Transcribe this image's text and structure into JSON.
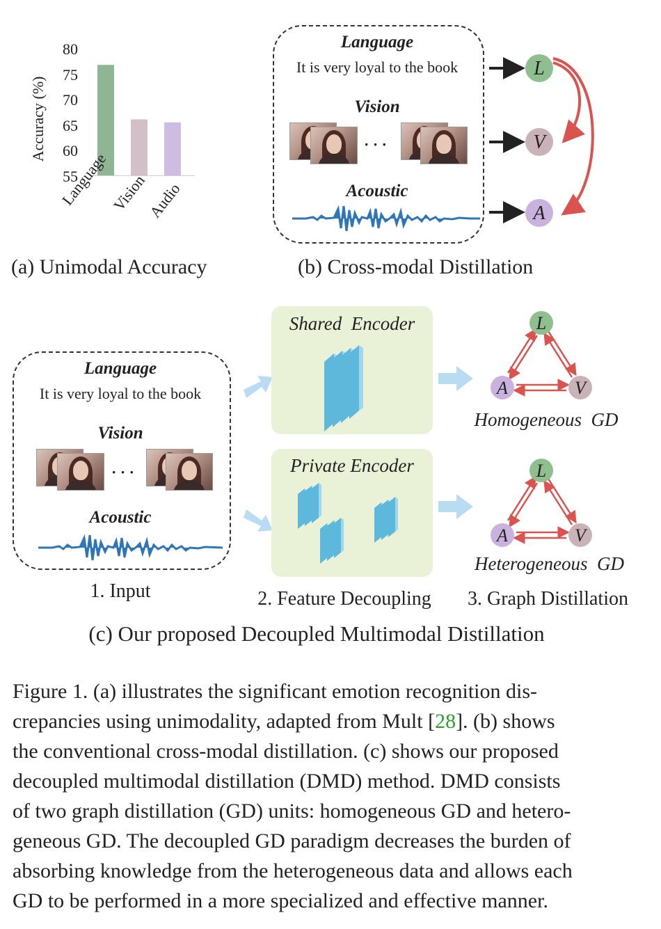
{
  "panel_a": {
    "caption": "(a) Unimodal Accuracy",
    "ylabel": "Accuracy (%)",
    "ticks": [
      "80",
      "75",
      "70",
      "65",
      "60",
      "55"
    ]
  },
  "chart_data": {
    "type": "bar",
    "categories": [
      "Language",
      "Vision",
      "Audio"
    ],
    "values": [
      77.3,
      66.3,
      65.7
    ],
    "ylabel": "Accuracy (%)",
    "ylim": [
      55,
      80
    ],
    "yticks": [
      55,
      60,
      65,
      70,
      75,
      80
    ],
    "colors": [
      "#8fb595",
      "#d2bfc7",
      "#cdbde2"
    ],
    "grid": false
  },
  "panel_b": {
    "caption": "(b) Cross-modal Distillation",
    "language_title": "Language",
    "sentence": "It is very loyal to the book",
    "vision_title": "Vision",
    "ellipsis": "· · ·",
    "acoustic_title": "Acoustic",
    "nodes": [
      "L",
      "V",
      "A"
    ]
  },
  "panel_c": {
    "caption": "(c) Our proposed Decoupled Multimodal Distillation",
    "language_title": "Language",
    "sentence": "It is very loyal to the book",
    "vision_title": "Vision",
    "ellipsis": "· · ·",
    "acoustic_title": "Acoustic",
    "step1": "1. Input",
    "step2": "2. Feature Decoupling",
    "step3": "3. Graph Distillation",
    "shared_encoder": "Shared  Encoder",
    "private_encoder": "Private Encoder",
    "homogeneous_gd": "Homogeneous  GD",
    "heterogeneous_gd": "Heterogeneous  GD",
    "nodes": [
      "L",
      "A",
      "V"
    ]
  },
  "figure_caption": {
    "lines": [
      [
        "Figure 1.  (a) illustrates the significant emotion recognition dis-"
      ],
      [
        "crepancies using unimodality, adapted from Mult [",
        "28",
        "].  (b) shows"
      ],
      [
        "the conventional cross-modal distillation. (c) shows our proposed"
      ],
      [
        "decoupled multimodal distillation (DMD) method. DMD consists"
      ],
      [
        "of two graph distillation (GD) units: homogeneous GD and hetero-"
      ],
      [
        "geneous GD. The decoupled GD paradigm decreases the burden of"
      ],
      [
        "absorbing knowledge from the heterogeneous data and allows each"
      ],
      [
        "GD to be performed in a more specialized and effective manner."
      ]
    ],
    "line1": "Figure 1.  (a) illustrates the significant emotion recognition dis-",
    "line2a": "crepancies using unimodality, adapted from Mult [",
    "line2_ref": "28",
    "line2b": "].  (b) shows",
    "line3": "the conventional cross-modal distillation. (c) shows our proposed",
    "line4": "decoupled multimodal distillation (DMD) method. DMD consists",
    "line5": "of two graph distillation (GD) units: homogeneous GD and hetero-",
    "line6": "geneous GD. The decoupled GD paradigm decreases the burden of",
    "line7": "absorbing knowledge from the heterogeneous data and allows each",
    "line8": "GD to be performed in a more specialized and effective manner."
  }
}
